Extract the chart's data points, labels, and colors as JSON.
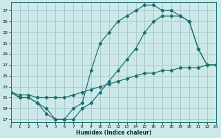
{
  "xlabel": "Humidex (Indice chaleur)",
  "xlim": [
    0,
    23
  ],
  "ylim": [
    16.5,
    38.5
  ],
  "yticks": [
    17,
    19,
    21,
    23,
    25,
    27,
    29,
    31,
    33,
    35,
    37
  ],
  "xticks": [
    0,
    1,
    2,
    3,
    4,
    5,
    6,
    7,
    8,
    9,
    10,
    11,
    12,
    13,
    14,
    15,
    16,
    17,
    18,
    19,
    20,
    21,
    22,
    23
  ],
  "bg_color": "#cce8e8",
  "grid_color": "#aacccc",
  "line_color": "#1a7070",
  "curve1_x": [
    0,
    1,
    2,
    3,
    4,
    5,
    6,
    7,
    8,
    9,
    10,
    11,
    12,
    13,
    14,
    15,
    16,
    17,
    18,
    19,
    20,
    21,
    22,
    23
  ],
  "curve1_y": [
    22,
    21,
    21,
    20,
    18,
    17,
    17,
    19,
    20,
    26,
    31,
    33,
    35,
    36,
    37,
    38,
    38,
    37,
    37,
    36,
    35,
    30,
    27,
    27
  ],
  "curve2_x": [
    0,
    1,
    2,
    3,
    4,
    5,
    6,
    7,
    8,
    9,
    10,
    11,
    12,
    13,
    14,
    15,
    16,
    17,
    18,
    19,
    20,
    21,
    22,
    23
  ],
  "curve2_y": [
    22,
    21,
    21,
    20,
    19,
    17,
    17,
    17,
    19,
    20,
    22,
    24,
    26,
    28,
    30,
    33,
    35,
    36,
    36,
    36,
    35,
    30,
    27,
    27
  ],
  "curve3_x": [
    0,
    1,
    2,
    3,
    4,
    5,
    6,
    7,
    8,
    9,
    10,
    11,
    12,
    13,
    14,
    15,
    16,
    17,
    18,
    19,
    20,
    21,
    22,
    23
  ],
  "curve3_y": [
    22,
    21.5,
    21.5,
    21,
    21,
    21,
    21,
    21.5,
    22,
    22.5,
    23,
    23.5,
    24,
    24.5,
    25,
    25.5,
    25.5,
    26,
    26,
    26.5,
    26.5,
    26.5,
    27,
    27
  ]
}
